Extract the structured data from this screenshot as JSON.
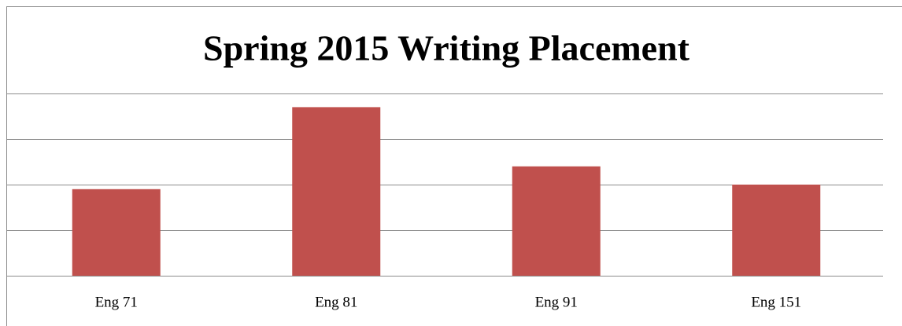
{
  "chart_data": {
    "type": "bar",
    "title": "Spring 2015 Writing Placement",
    "categories": [
      "Eng 71",
      "Eng 81",
      "Eng 91",
      "Eng 151"
    ],
    "values": [
      1.9,
      3.7,
      2.4,
      2.0
    ],
    "color": "#c0504d",
    "ylim": [
      0,
      4
    ],
    "yticks": [
      0,
      1,
      2,
      3,
      4
    ],
    "grid": true
  }
}
